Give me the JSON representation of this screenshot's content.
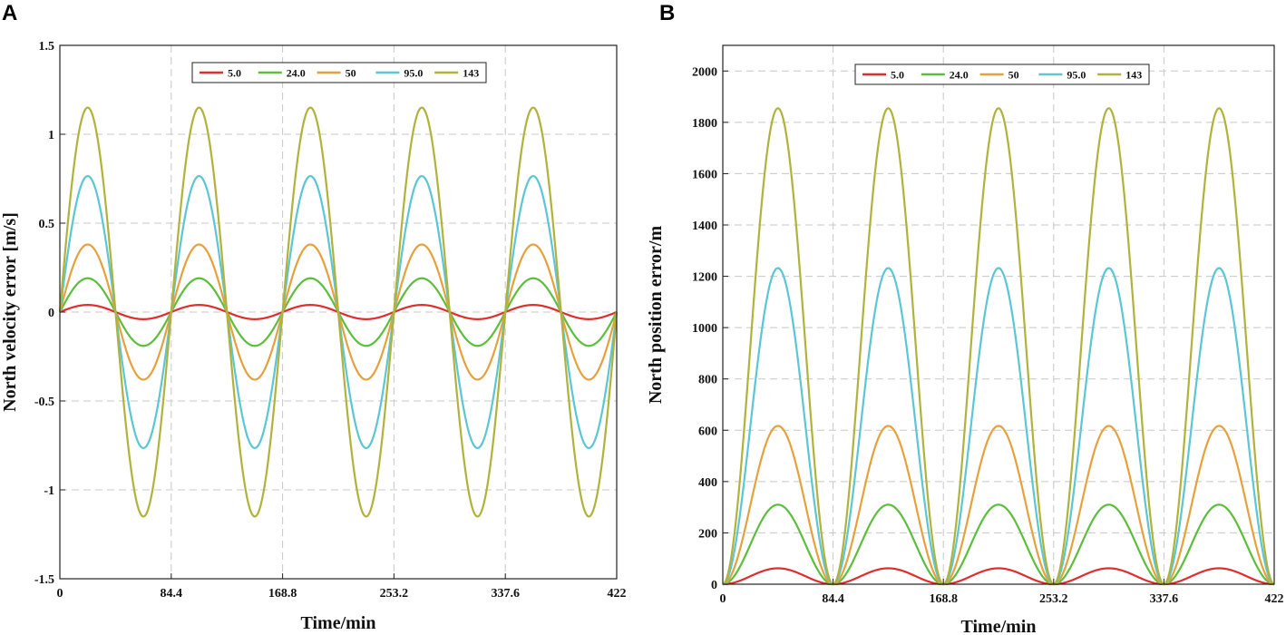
{
  "chart_data": [
    {
      "panel": "A",
      "type": "line",
      "xlabel": "Time/min",
      "ylabel": "North velocity error [m/s]",
      "xlim": [
        0,
        422
      ],
      "ylim": [
        -1.5,
        1.5
      ],
      "xticks": [
        0,
        84.4,
        168.8,
        253.2,
        337.6,
        422
      ],
      "xtick_labels": [
        "0",
        "84.4",
        "168.8",
        "253.2",
        "337.6",
        "422"
      ],
      "yticks": [
        -1.5,
        -1,
        -0.5,
        0,
        0.5,
        1,
        1.5
      ],
      "ytick_labels": [
        "-1.5",
        "-1",
        "-0.5",
        "0",
        "0.5",
        "1",
        "1.5"
      ],
      "grid": true,
      "legend_position": "top-center",
      "period_min": 84.4,
      "waveform": "sine",
      "series": [
        {
          "name": "5.0",
          "color": "#e02d2d",
          "amplitude": 0.04
        },
        {
          "name": "24.0",
          "color": "#5cbf3c",
          "amplitude": 0.19
        },
        {
          "name": "50",
          "color": "#e6a13c",
          "amplitude": 0.38
        },
        {
          "name": "95.0",
          "color": "#5bc6d4",
          "amplitude": 0.765
        },
        {
          "name": "143",
          "color": "#b0b23a",
          "amplitude": 1.15
        }
      ]
    },
    {
      "panel": "B",
      "type": "line",
      "xlabel": "Time/min",
      "ylabel": "North position error/m",
      "xlim": [
        0,
        422
      ],
      "ylim": [
        0,
        2100
      ],
      "xticks": [
        0,
        84.4,
        168.8,
        253.2,
        337.6,
        422
      ],
      "xtick_labels": [
        "0",
        "84.4",
        "168.8",
        "253.2",
        "337.6",
        "422"
      ],
      "yticks": [
        0,
        200,
        400,
        600,
        800,
        1000,
        1200,
        1400,
        1600,
        1800,
        2000
      ],
      "ytick_labels": [
        "0",
        "200",
        "400",
        "600",
        "800",
        "1000",
        "1200",
        "1400",
        "1600",
        "1800",
        "2000"
      ],
      "grid": true,
      "legend_position": "top-center",
      "period_min": 84.4,
      "waveform": "one-minus-cosine",
      "series": [
        {
          "name": "5.0",
          "color": "#e02d2d",
          "peak": 62
        },
        {
          "name": "24.0",
          "color": "#5cbf3c",
          "peak": 310
        },
        {
          "name": "50",
          "color": "#e6a13c",
          "peak": 617
        },
        {
          "name": "95.0",
          "color": "#5bc6d4",
          "peak": 1232
        },
        {
          "name": "143",
          "color": "#b0b23a",
          "peak": 1855
        }
      ]
    }
  ]
}
